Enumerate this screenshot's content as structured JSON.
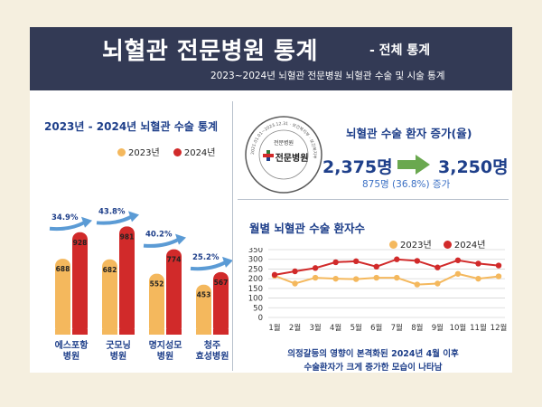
{
  "header": {
    "title": "뇌혈관 전문병원 통계",
    "tag": "- 전체 통계",
    "subtitle": "2023~2024년 뇌혈관 전문병원 뇌혈관 수술 및 시술 통계"
  },
  "surgery_panel": {
    "title": "2023년 - 2024년 뇌혈관 수술 통계",
    "legend": [
      "2023년",
      "2024년"
    ]
  },
  "increase_panel": {
    "title": "뇌혈관 수술 환자 증가(율)",
    "from_value": "2,375명",
    "to_value": "3,250명",
    "change_text": "875명 (36.8%) 증가",
    "seal": {
      "label": "전문병원",
      "name": "전문병원",
      "ring_text": "2021.01.01~2023.12.31 · 보건복지부 · 보건복지부"
    }
  },
  "monthly_panel": {
    "title": "월별 뇌혈관 수술 환자수",
    "legend": [
      "2023년",
      "2024년"
    ],
    "note_line1": "의정갈등의 영향이 본격화된 2024년 4월 이후",
    "note_line2": "수술환자가 크게 증가한 모습이 나타남"
  },
  "colors": {
    "header_bg": "#333a55",
    "series_2023": "#f4b85d",
    "series_2024": "#d12a2a",
    "accent_blue": "#1e3f8a",
    "arrow_green": "#6aa84f",
    "growth_arrow": "#5b9bd5"
  },
  "chart_data": [
    {
      "type": "bar",
      "title": "2023년 - 2024년 뇌혈관 수술 통계",
      "categories": [
        "에스포항\n병원",
        "굿모닝\n병원",
        "명지성모\n병원",
        "청주\n효성병원"
      ],
      "series": [
        {
          "name": "2023년",
          "values": [
            688,
            682,
            552,
            453
          ]
        },
        {
          "name": "2024년",
          "values": [
            928,
            981,
            774,
            567
          ]
        }
      ],
      "growth_labels": [
        "34.9%",
        "43.8%",
        "40.2%",
        "25.2%"
      ],
      "ylim": [
        0,
        1000
      ],
      "grid": false,
      "legend_position": "top-right"
    },
    {
      "type": "line",
      "title": "월별 뇌혈관 수술 환자수",
      "categories": [
        "1월",
        "2월",
        "3월",
        "4월",
        "5월",
        "6월",
        "7월",
        "8월",
        "9월",
        "10월",
        "11월",
        "12월"
      ],
      "series": [
        {
          "name": "2023년",
          "values": [
            215,
            175,
            205,
            200,
            198,
            205,
            205,
            170,
            175,
            225,
            200,
            212
          ]
        },
        {
          "name": "2024년",
          "values": [
            220,
            238,
            255,
            285,
            290,
            262,
            300,
            292,
            258,
            295,
            278,
            268
          ]
        }
      ],
      "yticks": [
        0,
        50,
        100,
        150,
        200,
        250,
        300,
        350
      ],
      "ylim": [
        0,
        350
      ],
      "grid": true,
      "legend_position": "top-right"
    }
  ]
}
